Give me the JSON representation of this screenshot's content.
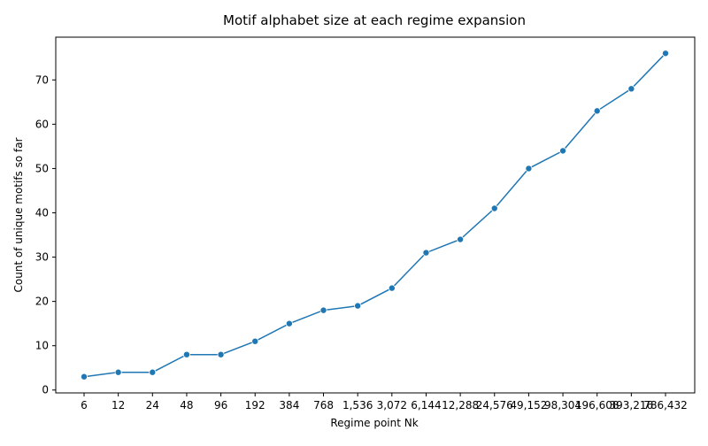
{
  "chart_data": {
    "type": "line",
    "title": "Motif alphabet size at each regime expansion",
    "xlabel": "Regime point Nk",
    "ylabel": "Count of unique motifs so far",
    "categories": [
      "6",
      "12",
      "24",
      "48",
      "96",
      "192",
      "384",
      "768",
      "1,536",
      "3,072",
      "6,144",
      "12,288",
      "24,576",
      "49,152",
      "98,304",
      "196,608",
      "393,216",
      "786,432"
    ],
    "series": [
      {
        "values": [
          3,
          4,
          4,
          8,
          8,
          11,
          15,
          18,
          19,
          23,
          31,
          34,
          41,
          50,
          54,
          63,
          68,
          76
        ]
      }
    ],
    "yticks": [
      0,
      10,
      20,
      30,
      40,
      50,
      60,
      70
    ],
    "ylim": [
      -0.65,
      79.65
    ],
    "grid": false,
    "legend": "none",
    "marker": "circle",
    "color": "#1f77b4"
  }
}
